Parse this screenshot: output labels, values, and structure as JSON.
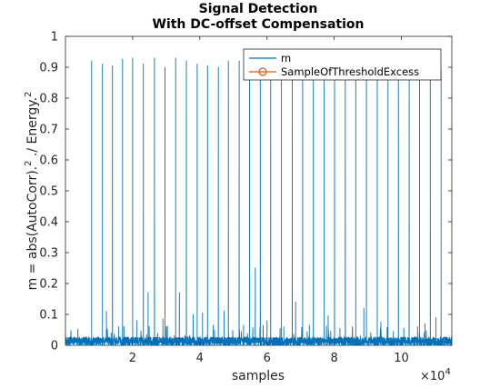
{
  "chart_data": {
    "type": "line",
    "title": [
      "Signal Detection",
      "With DC-offset Compensation"
    ],
    "xlabel": "samples",
    "ylabel": "m = abs(AutoCorr).",
    "ylabel_parts": [
      "m = abs(AutoCorr).",
      "2",
      " ./ Energy.",
      "2"
    ],
    "x_multiplier": "×10",
    "x_multiplier_exp": "4",
    "xlim": [
      0,
      115000
    ],
    "ylim": [
      0,
      1
    ],
    "xticks": [
      20000,
      40000,
      60000,
      80000,
      100000
    ],
    "xtick_labels": [
      "2",
      "4",
      "6",
      "8",
      "10"
    ],
    "yticks": [
      0,
      0.1,
      0.2,
      0.3,
      0.4,
      0.5,
      0.6,
      0.7,
      0.8,
      0.9,
      1
    ],
    "ytick_labels": [
      "0",
      "0.1",
      "0.2",
      "0.3",
      "0.4",
      "0.5",
      "0.6",
      "0.7",
      "0.8",
      "0.9",
      "1"
    ],
    "grid": false,
    "legend_position": "top-right",
    "series": [
      {
        "name": "m",
        "color": "#0072BD",
        "baseline_level": 0.03,
        "main_peaks": {
          "x": [
            7800,
            11000,
            14000,
            17000,
            20000,
            23200,
            26500,
            29600,
            32800,
            36000,
            39200,
            42300,
            45500,
            48500,
            51700,
            54800,
            58000,
            61100,
            64300,
            67500,
            70600,
            73800,
            77000,
            80100,
            83300,
            86400,
            89600,
            92800,
            96000,
            99100,
            102300,
            105400,
            108600,
            111800
          ],
          "y": [
            0.92,
            0.91,
            0.905,
            0.925,
            0.93,
            0.91,
            0.93,
            0.9,
            0.93,
            0.92,
            0.91,
            0.905,
            0.9,
            0.92,
            0.92,
            0.92,
            0.92,
            0.915,
            0.92,
            0.92,
            0.91,
            0.92,
            0.91,
            0.93,
            0.92,
            0.92,
            0.93,
            0.92,
            0.915,
            0.92,
            0.92,
            0.905,
            0.92,
            0.89
          ]
        },
        "secondary_peaks": {
          "x": [
            12200,
            15800,
            21300,
            24600,
            29000,
            33900,
            38000,
            40800,
            44000,
            47200,
            53000,
            56500,
            60000,
            65000,
            68500,
            72600,
            78200,
            81700,
            85400,
            88800,
            93900,
            97600,
            100700,
            104800,
            107000,
            110300
          ],
          "y": [
            0.11,
            0.06,
            0.08,
            0.17,
            0.085,
            0.17,
            0.1,
            0.105,
            0.065,
            0.11,
            0.065,
            0.25,
            0.08,
            0.06,
            0.14,
            0.065,
            0.095,
            0.055,
            0.06,
            0.12,
            0.075,
            0.045,
            0.055,
            0.06,
            0.07,
            0.09
          ]
        }
      },
      {
        "name": "SampleOfThresholdExcess",
        "color": "#D95319",
        "marker": "circle",
        "x": [],
        "y": []
      }
    ]
  }
}
